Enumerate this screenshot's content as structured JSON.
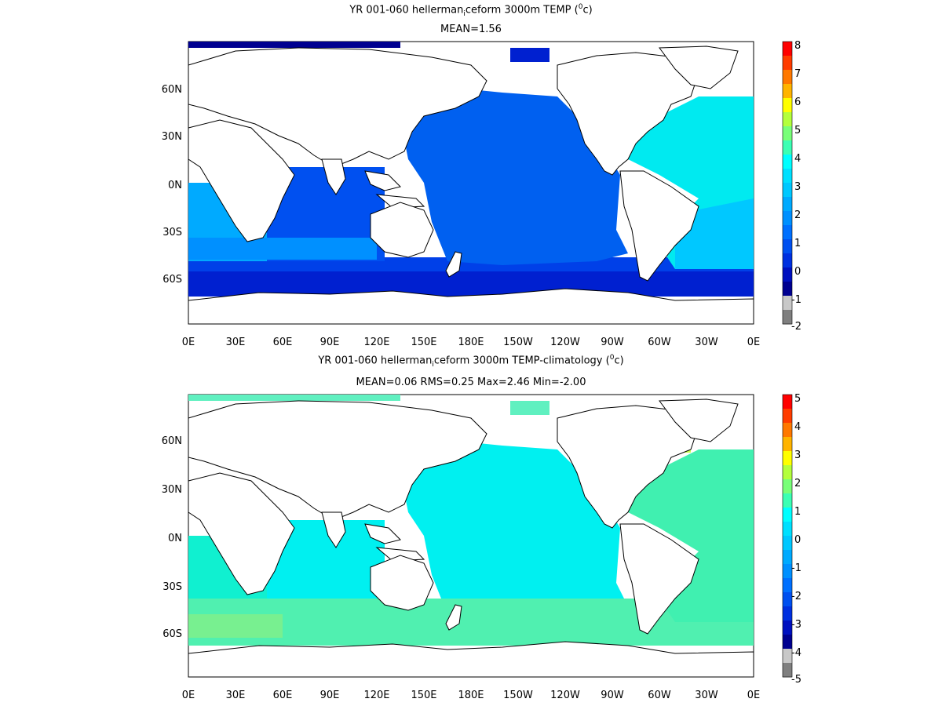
{
  "panels": [
    {
      "title_pre": "YR 001-060 hellerman",
      "title_sub": "i",
      "title_mid": "ceform 3000m TEMP (",
      "title_sup": "0",
      "title_post": "c)",
      "subtitle": "MEAN=1.56",
      "lat_labels": [
        "60N",
        "30N",
        "0N",
        "30S",
        "60S"
      ],
      "lon_labels": [
        "0E",
        "30E",
        "60E",
        "90E",
        "120E",
        "150E",
        "180E",
        "150W",
        "120W",
        "90W",
        "60W",
        "30W",
        "0E"
      ],
      "colorbar": {
        "labels": [
          "8",
          "7",
          "6",
          "5",
          "4",
          "3",
          "2",
          "1",
          "0",
          "-1",
          "-2"
        ],
        "colors": [
          "#ff0000",
          "#ff3c00",
          "#ff7800",
          "#ffb400",
          "#ffff00",
          "#b4ff3c",
          "#78ff78",
          "#3cffb4",
          "#00ffff",
          "#00e0ff",
          "#00c8ff",
          "#00aaff",
          "#0090ff",
          "#0070ff",
          "#0050f0",
          "#0030e0",
          "#0010c0",
          "#000090",
          "#c8c8c8",
          "#7f7f7f"
        ]
      }
    },
    {
      "title_pre": "YR 001-060 hellerman",
      "title_sub": "i",
      "title_mid": "ceform 3000m TEMP-climatology (",
      "title_sup": "0",
      "title_post": "c)",
      "subtitle": "MEAN=0.06   RMS=0.25   Max=2.46   Min=-2.00",
      "lat_labels": [
        "60N",
        "30N",
        "0N",
        "30S",
        "60S"
      ],
      "lon_labels": [
        "0E",
        "30E",
        "60E",
        "90E",
        "120E",
        "150E",
        "180E",
        "150W",
        "120W",
        "90W",
        "60W",
        "30W",
        "0E"
      ],
      "colorbar": {
        "labels": [
          "5",
          "4",
          "3",
          "2",
          "1",
          "0",
          "-1",
          "-2",
          "-3",
          "-4",
          "-5"
        ],
        "colors": [
          "#ff0000",
          "#ff3c00",
          "#ff7800",
          "#ffb400",
          "#ffff00",
          "#b4ff3c",
          "#78ff78",
          "#3cffb4",
          "#00ffff",
          "#00e0ff",
          "#00c8ff",
          "#00aaff",
          "#0090ff",
          "#0070ff",
          "#0050f0",
          "#0030e0",
          "#0010c0",
          "#000090",
          "#c8c8c8",
          "#7f7f7f"
        ]
      }
    }
  ]
}
